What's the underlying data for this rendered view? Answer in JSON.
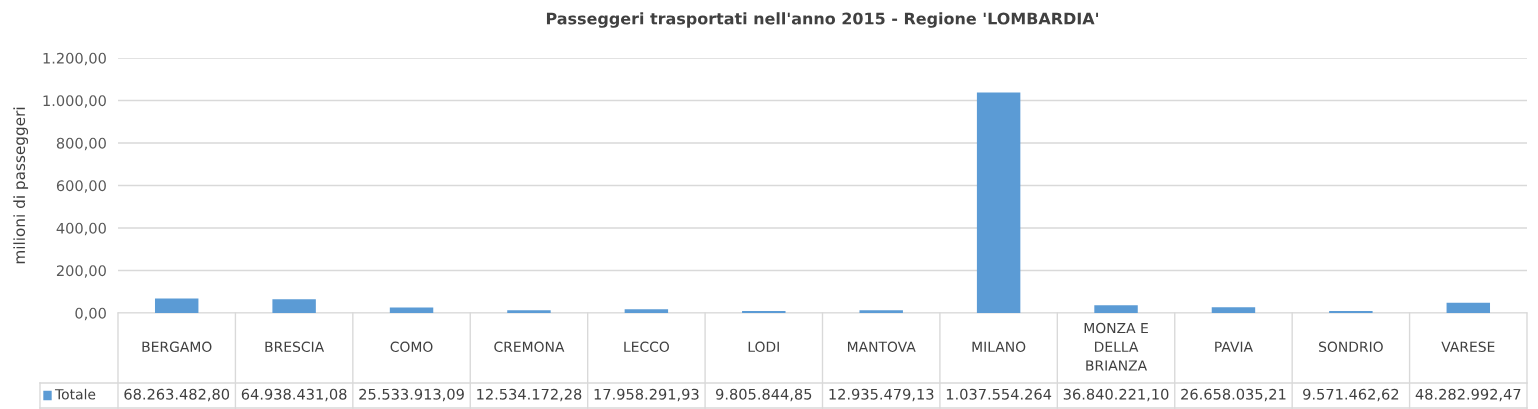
{
  "chart_data": {
    "type": "bar",
    "title": "Passeggeri trasportati nell'anno 2015 - Regione 'LOMBARDIA'",
    "ylabel": "milioni di passeggeri",
    "categories": [
      "BERGAMO",
      "BRESCIA",
      "COMO",
      "CREMONA",
      "LECCO",
      "LODI",
      "MANTOVA",
      "MILANO",
      "MONZA E DELLA BRIANZA",
      "PAVIA",
      "SONDRIO",
      "VARESE"
    ],
    "series": [
      {
        "name": "Totale",
        "color": "#5b9bd5",
        "values": [
          68.26,
          64.94,
          25.53,
          12.53,
          17.96,
          9.81,
          12.94,
          1037.55,
          36.84,
          26.66,
          9.57,
          48.28
        ]
      }
    ],
    "annotations": [
      "68.263.482,80",
      "64.938.431,08",
      "25.533.913,09",
      "12.534.172,28",
      "17.958.291,93",
      "9.805.844,85",
      "12.935.479,13",
      "1.037.554.264",
      "36.840.221,10",
      "26.658.035,21",
      "9.571.462,62",
      "48.282.992,47"
    ],
    "ylim": [
      0,
      1200
    ],
    "yticks": [
      {
        "value": 0,
        "label": "0,00"
      },
      {
        "value": 200,
        "label": "200,00"
      },
      {
        "value": 400,
        "label": "400,00"
      },
      {
        "value": 600,
        "label": "600,00"
      },
      {
        "value": 800,
        "label": "800,00"
      },
      {
        "value": 1000,
        "label": "1.000,00"
      },
      {
        "value": 1200,
        "label": "1.200,00"
      }
    ],
    "grid": "y"
  }
}
